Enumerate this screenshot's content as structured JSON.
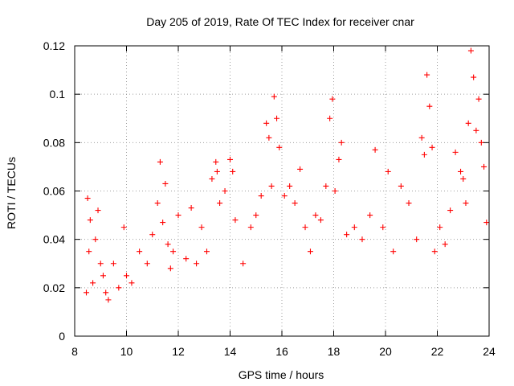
{
  "chart_data": {
    "type": "scatter",
    "title": "Day 205 of 2019, Rate Of TEC Index for receiver cnar",
    "xlabel": "GPS time / hours",
    "ylabel": "ROTI / TECUs",
    "xlim": [
      8,
      24
    ],
    "ylim": [
      0,
      0.12
    ],
    "xticks": [
      "8",
      "10",
      "12",
      "14",
      "16",
      "18",
      "20",
      "22",
      "24"
    ],
    "yticks": [
      "0",
      "0.02",
      "0.04",
      "0.06",
      "0.08",
      "0.1",
      "0.12"
    ],
    "grid": true,
    "marker": "+",
    "color": "#ff0000",
    "series": [
      {
        "name": "ROTI",
        "x": [
          8.45,
          8.5,
          8.55,
          8.6,
          8.7,
          8.8,
          8.9,
          9.0,
          9.1,
          9.2,
          9.3,
          9.5,
          9.7,
          9.9,
          10.0,
          10.2,
          10.5,
          10.8,
          11.0,
          11.2,
          11.3,
          11.4,
          11.5,
          11.6,
          11.7,
          11.8,
          12.0,
          12.3,
          12.5,
          12.7,
          12.9,
          13.1,
          13.3,
          13.45,
          13.5,
          13.6,
          13.8,
          14.0,
          14.1,
          14.2,
          14.5,
          14.8,
          15.0,
          15.2,
          15.4,
          15.5,
          15.6,
          15.7,
          15.8,
          15.9,
          16.1,
          16.3,
          16.5,
          16.7,
          16.9,
          17.1,
          17.3,
          17.5,
          17.7,
          17.85,
          17.95,
          18.05,
          18.2,
          18.3,
          18.5,
          18.8,
          19.1,
          19.4,
          19.6,
          19.9,
          20.1,
          20.3,
          20.6,
          20.9,
          21.2,
          21.4,
          21.5,
          21.6,
          21.7,
          21.8,
          21.9,
          22.1,
          22.3,
          22.5,
          22.7,
          22.9,
          23.0,
          23.1,
          23.2,
          23.3,
          23.4,
          23.5,
          23.6,
          23.7,
          23.8,
          23.9
        ],
        "y": [
          0.018,
          0.057,
          0.035,
          0.048,
          0.022,
          0.04,
          0.052,
          0.03,
          0.025,
          0.018,
          0.015,
          0.03,
          0.02,
          0.045,
          0.025,
          0.022,
          0.035,
          0.03,
          0.042,
          0.055,
          0.072,
          0.047,
          0.063,
          0.038,
          0.028,
          0.035,
          0.05,
          0.032,
          0.053,
          0.03,
          0.045,
          0.035,
          0.065,
          0.072,
          0.068,
          0.055,
          0.06,
          0.073,
          0.068,
          0.048,
          0.03,
          0.045,
          0.05,
          0.058,
          0.088,
          0.082,
          0.062,
          0.099,
          0.09,
          0.078,
          0.058,
          0.062,
          0.055,
          0.069,
          0.045,
          0.035,
          0.05,
          0.048,
          0.062,
          0.09,
          0.098,
          0.06,
          0.073,
          0.08,
          0.042,
          0.045,
          0.04,
          0.05,
          0.077,
          0.045,
          0.068,
          0.035,
          0.062,
          0.055,
          0.04,
          0.082,
          0.075,
          0.108,
          0.095,
          0.078,
          0.035,
          0.045,
          0.038,
          0.052,
          0.076,
          0.068,
          0.065,
          0.055,
          0.088,
          0.118,
          0.107,
          0.085,
          0.098,
          0.08,
          0.07,
          0.047
        ]
      }
    ]
  }
}
